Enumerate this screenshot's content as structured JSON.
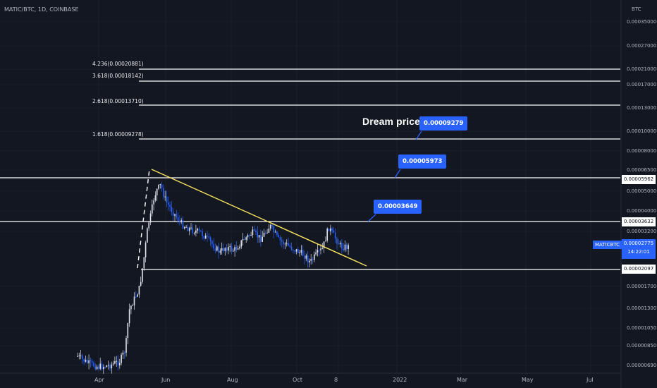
{
  "header": {
    "symbol_line": "MATIC/BTC, 1D, COINBASE"
  },
  "axis": {
    "unit": "BTC",
    "price_ticks": [
      "0.00035000",
      "0.00027000",
      "0.00021000",
      "0.00017000",
      "0.00013000",
      "0.00010000",
      "0.00008000",
      "0.00006500",
      "0.00005000",
      "0.00004000",
      "0.00003200",
      "0.00001700",
      "0.00001300",
      "0.00001050",
      "0.00000850",
      "0.00000690"
    ],
    "time_ticks": [
      "Apr",
      "Jun",
      "Aug",
      "Oct",
      "8",
      "2022",
      "Mar",
      "May",
      "Jul"
    ]
  },
  "fib_levels": [
    {
      "label": "4.236(0.00020881)"
    },
    {
      "label": "3.618(0.00018142)"
    },
    {
      "label": "2.618(0.00013710)"
    },
    {
      "label": "1.618(0.00009278)"
    }
  ],
  "levels": {
    "resistance_high": "0.00005962",
    "resistance_mid": "0.00003632",
    "support": "0.00002097"
  },
  "annotations": {
    "dream_text": "Dream price",
    "targets": [
      "0.00009279",
      "0.00005973",
      "0.00003649"
    ]
  },
  "last_price": {
    "symbol": "MATICBTC",
    "value": "0.00002775",
    "countdown": "14:22:01",
    "color": "#2962ff"
  },
  "colors": {
    "background": "#131722",
    "candles": "#e0e3eb",
    "trendline": "#f7e35c",
    "levels": "#ffffff",
    "accent": "#2962ff"
  },
  "chart_data": {
    "type": "candlestick",
    "scale": "log",
    "title": "MATIC/BTC, 1D, COINBASE",
    "series": [
      {
        "name": "MATIC/BTC",
        "close_approx": [
          [
            "Mar",
            7.5e-06
          ],
          [
            "Apr",
            7e-06
          ],
          [
            "Apr",
            6.8e-06
          ],
          [
            "Apr",
            7.2e-06
          ],
          [
            "Apr",
            7.8e-06
          ],
          [
            "May",
            1.2e-05
          ],
          [
            "May",
            1.8e-05
          ],
          [
            "May",
            3.2e-05
          ],
          [
            "May",
            4.5e-05
          ],
          [
            "May",
            6e-05
          ],
          [
            "Jun",
            4.5e-05
          ],
          [
            "Jun",
            3.8e-05
          ],
          [
            "Jun",
            3.4e-05
          ],
          [
            "Jul",
            3e-05
          ],
          [
            "Jul",
            2.5e-05
          ],
          [
            "Aug",
            2.7e-05
          ],
          [
            "Aug",
            2.9e-05
          ],
          [
            "Sep",
            3.3e-05
          ],
          [
            "Sep",
            2.8e-05
          ],
          [
            "Oct",
            2.4e-05
          ],
          [
            "Oct",
            2.2e-05
          ],
          [
            "Nov",
            3.5e-05
          ],
          [
            "Nov",
            2.8e-05
          ],
          [
            "Nov",
            2.78e-05
          ]
        ]
      }
    ],
    "horizontal_levels": [
      0.00020881,
      0.00018142,
      0.0001371,
      9.278e-05,
      5.962e-05,
      3.632e-05,
      2.097e-05
    ],
    "legend": "none"
  }
}
